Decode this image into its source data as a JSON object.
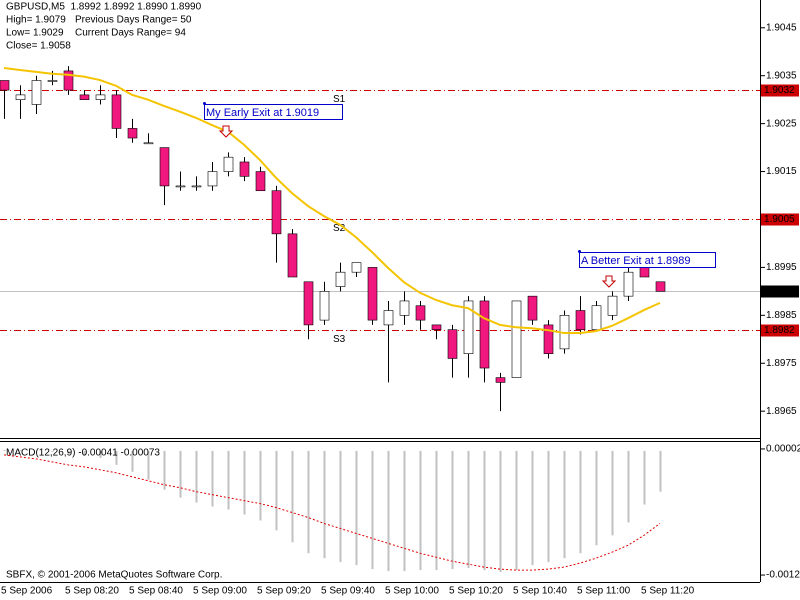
{
  "chart_data": [
    {
      "type": "candlestick",
      "title": "GBPUSD,M5  1.8992 1.8992 1.8990 1.8990",
      "info": [
        "High= 1.9079",
        "Previous Days Range= 50",
        "Low= 1.9029",
        "Current Days Range= 94",
        "Close= 1.9058"
      ],
      "categories": [
        "5 Sep 2006",
        null,
        null,
        null,
        "5 Sep 08:20",
        null,
        null,
        null,
        "5 Sep 08:40",
        null,
        null,
        null,
        "5 Sep 09:00",
        null,
        null,
        null,
        "5 Sep 09:20",
        null,
        null,
        null,
        "5 Sep 09:40",
        null,
        null,
        null,
        "5 Sep 10:00",
        null,
        null,
        null,
        "5 Sep 10:20",
        null,
        null,
        null,
        "5 Sep 10:40",
        null,
        null,
        null,
        "5 Sep 11:00",
        null,
        null,
        null,
        "5 Sep 11:20",
        null
      ],
      "open": [
        1.9034,
        1.903,
        1.9029,
        1.9034,
        1.9036,
        1.9031,
        1.903,
        1.9031,
        1.9024,
        1.9021,
        1.902,
        1.9012,
        1.9012,
        1.9012,
        1.9015,
        1.9017,
        1.9015,
        1.9011,
        1.9002,
        1.8992,
        1.8984,
        1.8991,
        1.8994,
        1.8995,
        1.8983,
        1.8985,
        1.8987,
        1.8983,
        1.8982,
        1.8977,
        1.8988,
        1.8972,
        1.8972,
        1.8989,
        1.8983,
        1.8978,
        1.8986,
        1.8982,
        1.8985,
        1.8989,
        1.8995,
        1.8992
      ],
      "high": [
        1.9034,
        1.9033,
        1.9035,
        1.9036,
        1.9037,
        1.9032,
        1.9033,
        1.9032,
        1.9026,
        1.9023,
        1.902,
        1.9015,
        1.9014,
        1.9017,
        1.9019,
        1.9018,
        1.9016,
        1.9012,
        1.9003,
        1.8992,
        1.8992,
        1.8996,
        1.8996,
        1.8995,
        1.8988,
        1.899,
        1.8988,
        1.8983,
        1.8983,
        1.8989,
        1.8989,
        1.8973,
        1.8988,
        1.8989,
        1.8984,
        1.8986,
        1.8989,
        1.8988,
        1.899,
        1.8995,
        1.8995,
        1.8992
      ],
      "low": [
        1.9026,
        1.9026,
        1.9027,
        1.9033,
        1.9031,
        1.903,
        1.9029,
        1.9022,
        1.9021,
        1.9021,
        1.9008,
        1.9011,
        1.9011,
        1.9011,
        1.9014,
        1.9013,
        1.9011,
        1.8996,
        1.8993,
        1.898,
        1.8983,
        1.899,
        1.8993,
        1.8983,
        1.8971,
        1.8983,
        1.8982,
        1.898,
        1.8972,
        1.8972,
        1.8971,
        1.8965,
        1.8972,
        1.8983,
        1.8976,
        1.8977,
        1.8981,
        1.8982,
        1.8984,
        1.8988,
        1.8993,
        1.899
      ],
      "close": [
        1.9032,
        1.9031,
        1.9034,
        1.9034,
        1.9032,
        1.903,
        1.9031,
        1.9024,
        1.9022,
        1.9021,
        1.9012,
        1.9012,
        1.9012,
        1.9015,
        1.9018,
        1.9014,
        1.9011,
        1.9002,
        1.8993,
        1.8983,
        1.899,
        1.8994,
        1.8996,
        1.8984,
        1.8986,
        1.8988,
        1.8984,
        1.8982,
        1.8976,
        1.8988,
        1.8974,
        1.8971,
        1.8988,
        1.8984,
        1.8977,
        1.8985,
        1.8982,
        1.8987,
        1.8989,
        1.8994,
        1.8993,
        1.899
      ],
      "up_color": "#ffffff",
      "down_color": "#f0187f",
      "ma": {
        "color": "#f5c400",
        "values": [
          1.90366,
          1.90362,
          1.90358,
          1.90354,
          1.90352,
          1.90348,
          1.90341,
          1.90329,
          1.9031,
          1.903,
          1.90287,
          1.90275,
          1.90262,
          1.90247,
          1.90233,
          1.90206,
          1.90174,
          1.90137,
          1.90105,
          1.90078,
          1.90057,
          1.90039,
          1.90013,
          1.89982,
          1.89949,
          1.89919,
          1.89897,
          1.89882,
          1.89871,
          1.89865,
          1.89844,
          1.8983,
          1.89825,
          1.89823,
          1.89819,
          1.89813,
          1.89813,
          1.89817,
          1.89828,
          1.89844,
          1.89861,
          1.89876
        ]
      },
      "levels": [
        {
          "value": 1.9032,
          "name": "S1",
          "color": "#cc0000"
        },
        {
          "value": 1.9005,
          "name": "S2",
          "color": "#cc0000"
        },
        {
          "value": 1.8982,
          "name": "S3",
          "color": "#cc0000"
        },
        {
          "value": 1.899,
          "label": "1.8990",
          "color": "#c0c0c0"
        }
      ],
      "annotations": [
        "My Early Exit at 1.9019",
        "A Better Exit at 1.8989"
      ],
      "ylim": [
        1.89594,
        1.90508
      ],
      "yticks": [
        1.9045,
        1.9035,
        1.9025,
        1.9015,
        1.9005,
        1.8995,
        1.8985,
        1.8975,
        1.8965
      ]
    },
    {
      "type": "macd",
      "title": "MACD(12,26,9) -0.00041 -0.00073",
      "histogram": {
        "color": "#c0c0c0",
        "values": [
          1e-05,
          1e-05,
          0.0,
          -1e-05,
          -3e-05,
          -5e-05,
          -7e-05,
          -0.00014,
          -0.00021,
          -0.00029,
          -0.00039,
          -0.00047,
          -0.00052,
          -0.00056,
          -0.00059,
          -0.00064,
          -0.0007,
          -0.0008,
          -0.00092,
          -0.00103,
          -0.00108,
          -0.00112,
          -0.00115,
          -0.00119,
          -0.00121,
          -0.00121,
          -0.0012,
          -0.0012,
          -0.00119,
          -0.00118,
          -0.0012,
          -0.00122,
          -0.0012,
          -0.00115,
          -0.00112,
          -0.00108,
          -0.00103,
          -0.00095,
          -0.00085,
          -0.00072,
          -0.00054,
          -0.00041
        ]
      },
      "signal": {
        "color": "#e00000",
        "values": [
          -4e-05,
          -6e-05,
          -8e-05,
          -0.00011,
          -0.00014,
          -0.00016,
          -0.00019,
          -0.00022,
          -0.00026,
          -0.0003,
          -0.00034,
          -0.00037,
          -0.00041,
          -0.00044,
          -0.00047,
          -0.0005,
          -0.00053,
          -0.00057,
          -0.00062,
          -0.00067,
          -0.00073,
          -0.00078,
          -0.00083,
          -0.00088,
          -0.00093,
          -0.00098,
          -0.00103,
          -0.00107,
          -0.00111,
          -0.00114,
          -0.00117,
          -0.00119,
          -0.0012,
          -0.0012,
          -0.00119,
          -0.00117,
          -0.00113,
          -0.00108,
          -0.00102,
          -0.00095,
          -0.00085,
          -0.00073
        ]
      },
      "ylim": [
        -0.00132,
        0.0001
      ],
      "yticks": [
        2e-05,
        -0.00125
      ]
    }
  ],
  "footer": "SBFX, © 2001-2006 MetaQuotes Software Corp."
}
